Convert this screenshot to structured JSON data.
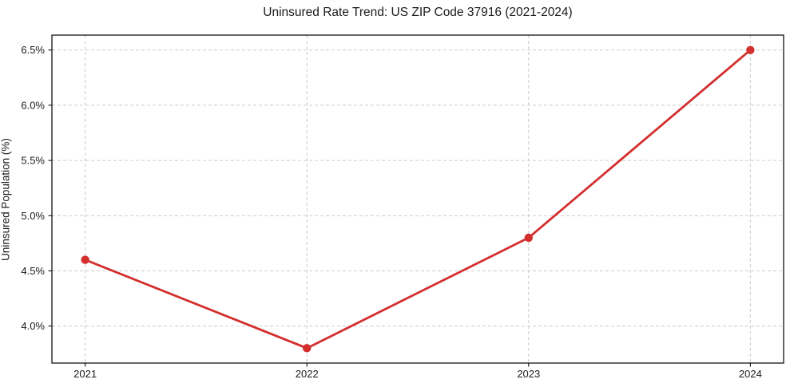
{
  "chart_data": {
    "type": "line",
    "title": "Uninsured Rate Trend: US ZIP Code 37916 (2021-2024)",
    "xlabel": "",
    "ylabel": "Uninsured Population (%)",
    "x": [
      2021,
      2022,
      2023,
      2024
    ],
    "x_tick_labels": [
      "2021",
      "2022",
      "2023",
      "2024"
    ],
    "values": [
      4.6,
      3.8,
      4.8,
      6.5
    ],
    "y_tick_values": [
      4.0,
      4.5,
      5.0,
      5.5,
      6.0,
      6.5
    ],
    "y_tick_labels": [
      "4.0%",
      "4.5%",
      "5.0%",
      "5.5%",
      "6.0%",
      "6.5%"
    ],
    "xlim": [
      2020.85,
      2024.15
    ],
    "ylim": [
      3.665,
      6.635
    ],
    "grid": "dashed",
    "legend": "none",
    "line_color": "#d32f2f",
    "marker": "circle"
  },
  "style": {
    "background": "#ffffff",
    "axis_color": "#000000",
    "grid_color": "#cccccc",
    "tick_text_color": "#1a1a1a"
  }
}
